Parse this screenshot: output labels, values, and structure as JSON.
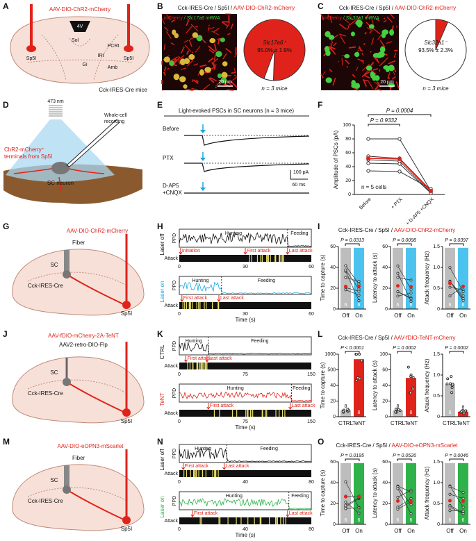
{
  "panels": {
    "A": {
      "label": "A",
      "virus": "AAV-DIO-ChR2-mCherry",
      "regions": [
        "4V",
        "Sol",
        "PCRt",
        "IRt",
        "Gi",
        "Amb"
      ],
      "site": "Sp5I",
      "mice": "Cck-IRES-Cre mice"
    },
    "B": {
      "label": "B",
      "header": "Cck-IRES-Cre / Sp5I / ",
      "virus": "AAV-DIO-ChR2-mCherry",
      "stain1": "mCherry",
      "stain2": " / Slc17a6 mRNA",
      "scale": "20 µm",
      "pie_label": "Slc17a6⁺",
      "pie_value": "95.0% ± 1.9%",
      "n": "n = 3 mice"
    },
    "C": {
      "label": "C",
      "header": "Cck-IRES-Cre / Sp5I / ",
      "virus": "AAV-DIO-ChR2-mCherry",
      "stain1": "mCherry",
      "stain2": " / Slc32a1 mRNA",
      "scale": "20 µm",
      "pie_label": "Slc32a1⁻",
      "pie_value": "93.5% ± 2.3%",
      "n": "n = 3 mice"
    },
    "D": {
      "label": "D",
      "wavelength": "473 nm",
      "recording": [
        "Whole-cell",
        "recording"
      ],
      "terminals": [
        "ChR2-mCherry⁺",
        "terminals from Sp5I"
      ],
      "neuron": "SC neuron"
    },
    "E": {
      "label": "E",
      "title": "Light-evoked PSCs in SC neurons (n = 3 mice)",
      "conditions": [
        "Before",
        "PTX",
        "D-AP5",
        "+CNQX"
      ],
      "scale_y": "100 pA",
      "scale_x": "60 ms"
    },
    "F": {
      "label": "F",
      "p": [
        "P = 0.0004",
        "P = 0.9332"
      ],
      "ylabel": "Amplitude of PSCs (pA)",
      "yticks": [
        "0",
        "20",
        "40",
        "60",
        "80",
        "100"
      ],
      "n": "n = 5 cells",
      "categories": [
        "Before",
        "+ PTX",
        "+ D-AP5 +CNQX"
      ]
    },
    "G": {
      "label": "G",
      "virus": "AAV-DIO-ChR2-mCherry",
      "fiber": "Fiber",
      "sc": "SC",
      "mouse": "Cck-IRES-Cre",
      "site": "Sp5I"
    },
    "H": {
      "label": "H",
      "ppd": "PPD",
      "attack": "Attack",
      "xlabel": "Time (s)",
      "rows": [
        {
          "condition": "Laser off",
          "hunting": "Hunting",
          "feeding": "Feeding",
          "events": [
            "Initiation",
            "First attack",
            "Last attack"
          ],
          "xticks": [
            "0",
            "30",
            "60"
          ]
        },
        {
          "condition": "Laser on",
          "hunting": "Hunting",
          "feeding": "Feeding",
          "events": [
            "First attack",
            "Last attack"
          ],
          "xticks": [
            "0",
            "30",
            "60"
          ]
        }
      ]
    },
    "I": {
      "label": "I",
      "header": "Cck-IRES-Cre / Sp5I / ",
      "virus": "AAV-DIO-ChR2-mCherry",
      "groups": [
        "Off",
        "On"
      ],
      "n": "6",
      "plots": [
        {
          "ylabel": "Time to capture (s)",
          "p": "P = 0.0313",
          "yticks": [
            "0",
            "20",
            "40",
            "60"
          ]
        },
        {
          "ylabel": "Latency to attack (s)",
          "p": "P = 0.0098",
          "yticks": [
            "0",
            "20",
            "40",
            "60"
          ]
        },
        {
          "ylabel": "Attack frequency (Hz)",
          "p": "P = 0.0397",
          "yticks": [
            "0",
            "0.5",
            "1.0",
            "1.5"
          ]
        }
      ]
    },
    "J": {
      "label": "J",
      "virus": "AAV-fDIO-mCherry-2A-TeNT",
      "virus2": "AAV2-retro-DIO-Flp",
      "sc": "SC",
      "mouse": "Cck-IRES-Cre",
      "site": "Sp5I"
    },
    "K": {
      "label": "K",
      "ppd": "PPD",
      "attack": "Attack",
      "xlabel": "Time (s)",
      "rows": [
        {
          "condition": "CTRL",
          "hunting": "Hunting",
          "feeding": "Feeding",
          "events": [
            "First attack",
            "Last attack"
          ],
          "xticks": [
            "0",
            "75",
            "150"
          ]
        },
        {
          "condition": "TeNT",
          "hunting": "Hunting",
          "feeding": "Feeding",
          "events": [
            "First attack",
            "Last attack"
          ],
          "xticks": [
            "0",
            "75",
            "150"
          ]
        }
      ]
    },
    "L": {
      "label": "L",
      "header": "Cck-IRES-Cre / Sp5I / ",
      "virus": "AAV-fDIO-TeNT-mCherry",
      "groups": [
        "CTRL",
        "TeNT"
      ],
      "n": "8",
      "plots": [
        {
          "ylabel": "Time to capture (s)",
          "p": "P < 0.0001",
          "yticks": [
            "0",
            "20",
            "40",
            "500",
            "1000"
          ]
        },
        {
          "ylabel": "Latency to attack (s)",
          "p": "P = 0.0002",
          "yticks": [
            "0",
            "20",
            "40",
            "60",
            "100"
          ]
        },
        {
          "ylabel": "Attack frequency (Hz)",
          "p": "P = 0.0002",
          "yticks": [
            "0",
            "0.5",
            "1.0",
            "1.5"
          ]
        }
      ]
    },
    "M": {
      "label": "M",
      "virus": "AAV-DIO-eOPN3-mScarlet",
      "fiber": "Fiber",
      "sc": "SC",
      "mouse": "Cck-IRES-Cre",
      "site": "Sp5I"
    },
    "N": {
      "label": "N",
      "ppd": "PPD",
      "attack": "Attack",
      "xlabel": "Time (s)",
      "rows": [
        {
          "condition": "Laser off",
          "hunting": "Hunting",
          "feeding": "Feeding",
          "events": [
            "First attack",
            "Last attack"
          ],
          "xticks": [
            "0",
            "40",
            "80"
          ]
        },
        {
          "condition": "Laser on",
          "hunting": "Hunting",
          "feeding": "Feeding",
          "events": [
            "First attack",
            "Last attack"
          ],
          "xticks": [
            "0",
            "40",
            "80"
          ]
        }
      ]
    },
    "O": {
      "label": "O",
      "header": "Cck-IRES-Cre / Sp5I / ",
      "virus": "AAV-DIO-eOPN3-mScarlet",
      "groups": [
        "Off",
        "On"
      ],
      "n": "6",
      "plots": [
        {
          "ylabel": "Time to capture (s)",
          "p": "P = 0.0195",
          "yticks": [
            "0",
            "20",
            "40",
            "60"
          ]
        },
        {
          "ylabel": "Latency to attack (s)",
          "p": "P = 0.0526",
          "yticks": [
            "0",
            "20",
            "40",
            "60"
          ]
        },
        {
          "ylabel": "Attack frequency (Hz)",
          "p": "P = 0.0046",
          "yticks": [
            "0",
            "0.5",
            "1.0",
            "1.5"
          ]
        }
      ]
    }
  }
}
